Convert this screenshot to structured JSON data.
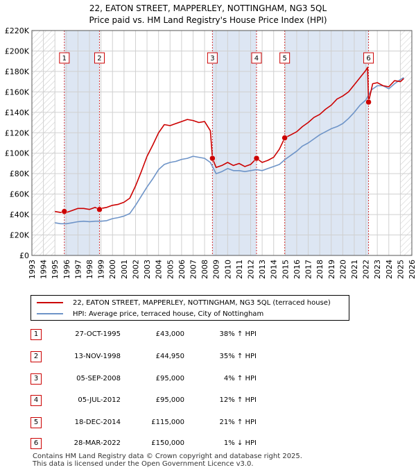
{
  "title_line1": "22, EATON STREET, MAPPERLEY, NOTTINGHAM, NG3 5QL",
  "title_line2": "Price paid vs. HM Land Registry's House Price Index (HPI)",
  "colors": {
    "property": "#cc0000",
    "hpi": "#6e94c8",
    "shade": "#dde6f3",
    "marker": "#cc0000"
  },
  "chart_data": {
    "type": "line",
    "title": "22, EATON STREET, MAPPERLEY, NOTTINGHAM, NG3 5QL — Price paid vs. HM Land Registry's House Price Index (HPI)",
    "xlabel": "",
    "ylabel": "",
    "xlim": [
      1993,
      2026
    ],
    "ylim": [
      0,
      220000
    ],
    "y_ticks": [
      0,
      20000,
      40000,
      60000,
      80000,
      100000,
      120000,
      140000,
      160000,
      180000,
      200000,
      220000
    ],
    "y_tick_labels": [
      "£0",
      "£20K",
      "£40K",
      "£60K",
      "£80K",
      "£100K",
      "£120K",
      "£140K",
      "£160K",
      "£180K",
      "£200K",
      "£220K"
    ],
    "x_ticks": [
      1993,
      1994,
      1995,
      1996,
      1997,
      1998,
      1999,
      2000,
      2001,
      2002,
      2003,
      2004,
      2005,
      2006,
      2007,
      2008,
      2009,
      2010,
      2011,
      2012,
      2013,
      2014,
      2015,
      2016,
      2017,
      2018,
      2019,
      2020,
      2021,
      2022,
      2023,
      2024,
      2025,
      2026
    ],
    "x_tick_labels": [
      "1993",
      "1994",
      "1995",
      "1996",
      "1997",
      "1998",
      "1999",
      "2000",
      "2001",
      "2002",
      "2003",
      "2004",
      "2005",
      "2006",
      "2007",
      "2008",
      "2009",
      "2010",
      "2011",
      "2012",
      "2013",
      "2014",
      "2015",
      "2016",
      "2017",
      "2018",
      "2019",
      "2020",
      "2021",
      "2022",
      "2023",
      "2024",
      "2025",
      "2026"
    ],
    "grid": true,
    "hatched_ranges": [
      [
        1993,
        1995.0
      ],
      [
        2025.0,
        2026
      ]
    ],
    "shaded_ranges": [
      [
        1995.82,
        1998.87
      ],
      [
        2008.68,
        2012.51
      ],
      [
        2014.96,
        2022.24
      ]
    ],
    "series": [
      {
        "name": "22, EATON STREET, MAPPERLEY, NOTTINGHAM, NG3 5QL (terraced house)",
        "x": [
          1995.0,
          1995.5,
          1995.82,
          1996.0,
          1996.5,
          1997.0,
          1997.5,
          1998.0,
          1998.5,
          1998.87,
          1999.0,
          1999.5,
          2000.0,
          2000.5,
          2001.0,
          2001.5,
          2002.0,
          2002.5,
          2003.0,
          2003.5,
          2004.0,
          2004.5,
          2005.0,
          2005.5,
          2006.0,
          2006.5,
          2007.0,
          2007.5,
          2008.0,
          2008.5,
          2008.68,
          2009.0,
          2009.5,
          2010.0,
          2010.5,
          2011.0,
          2011.5,
          2012.0,
          2012.51,
          2013.0,
          2013.5,
          2014.0,
          2014.5,
          2014.96,
          2015.5,
          2016.0,
          2016.5,
          2017.0,
          2017.5,
          2018.0,
          2018.5,
          2019.0,
          2019.5,
          2020.0,
          2020.5,
          2021.0,
          2021.5,
          2022.0,
          2022.15,
          2022.24,
          2022.6,
          2023.0,
          2023.5,
          2024.0,
          2024.5,
          2025.0,
          2025.3
        ],
        "values": [
          43000,
          42000,
          43000,
          42000,
          44000,
          46000,
          46000,
          45000,
          47000,
          44950,
          46000,
          47000,
          49000,
          50000,
          52000,
          56000,
          68000,
          82000,
          97000,
          108000,
          120000,
          128000,
          127000,
          129000,
          131000,
          133000,
          132000,
          130000,
          131000,
          122000,
          95000,
          86000,
          88000,
          91000,
          88000,
          90000,
          87000,
          89000,
          95000,
          91000,
          93000,
          96000,
          104000,
          115000,
          118000,
          121000,
          126000,
          130000,
          135000,
          138000,
          143000,
          147000,
          153000,
          156000,
          160000,
          167000,
          174000,
          181000,
          184000,
          150000,
          168000,
          169000,
          166000,
          165000,
          171000,
          170000,
          173000
        ]
      },
      {
        "name": "HPI: Average price, terraced house, City of Nottingham",
        "x": [
          1995.0,
          1995.5,
          1996.0,
          1996.5,
          1997.0,
          1997.5,
          1998.0,
          1998.5,
          1999.0,
          1999.5,
          2000.0,
          2000.5,
          2001.0,
          2001.5,
          2002.0,
          2002.5,
          2003.0,
          2003.5,
          2004.0,
          2004.5,
          2005.0,
          2005.5,
          2006.0,
          2006.5,
          2007.0,
          2007.5,
          2008.0,
          2008.5,
          2009.0,
          2009.5,
          2010.0,
          2010.5,
          2011.0,
          2011.5,
          2012.0,
          2012.5,
          2013.0,
          2013.5,
          2014.0,
          2014.5,
          2015.0,
          2015.5,
          2016.0,
          2016.5,
          2017.0,
          2017.5,
          2018.0,
          2018.5,
          2019.0,
          2019.5,
          2020.0,
          2020.5,
          2021.0,
          2021.5,
          2022.0,
          2022.5,
          2023.0,
          2023.5,
          2024.0,
          2024.5,
          2025.0,
          2025.3
        ],
        "values": [
          32000,
          31000,
          31000,
          32000,
          33000,
          33500,
          33000,
          33500,
          33500,
          34000,
          36000,
          37000,
          38500,
          41000,
          49000,
          58000,
          67000,
          75000,
          84000,
          89000,
          91000,
          92000,
          94000,
          95000,
          97000,
          96000,
          95000,
          91000,
          80000,
          82000,
          85000,
          83000,
          83000,
          82000,
          83000,
          84000,
          83000,
          85000,
          87000,
          89000,
          94000,
          98000,
          102000,
          107000,
          110000,
          114000,
          118000,
          121000,
          124000,
          126000,
          129000,
          134000,
          140000,
          147000,
          152000,
          162000,
          166000,
          166000,
          163000,
          168000,
          172000,
          174000
        ]
      }
    ],
    "markers": [
      {
        "label": "1",
        "x": 1995.82,
        "value": 43000
      },
      {
        "label": "2",
        "x": 1998.87,
        "value": 44950
      },
      {
        "label": "3",
        "x": 2008.68,
        "value": 95000
      },
      {
        "label": "4",
        "x": 2012.51,
        "value": 95000
      },
      {
        "label": "5",
        "x": 2014.96,
        "value": 115000
      },
      {
        "label": "6",
        "x": 2022.24,
        "value": 150000
      }
    ]
  },
  "legend": {
    "property_label": "22, EATON STREET, MAPPERLEY, NOTTINGHAM, NG3 5QL (terraced house)",
    "hpi_label": "HPI: Average price, terraced house, City of Nottingham"
  },
  "transactions": [
    {
      "num": "1",
      "date": "27-OCT-1995",
      "price": "£43,000",
      "hpi": "38% ↑ HPI"
    },
    {
      "num": "2",
      "date": "13-NOV-1998",
      "price": "£44,950",
      "hpi": "35% ↑ HPI"
    },
    {
      "num": "3",
      "date": "05-SEP-2008",
      "price": "£95,000",
      "hpi": "4% ↑ HPI"
    },
    {
      "num": "4",
      "date": "05-JUL-2012",
      "price": "£95,000",
      "hpi": "12% ↑ HPI"
    },
    {
      "num": "5",
      "date": "18-DEC-2014",
      "price": "£115,000",
      "hpi": "21% ↑ HPI"
    },
    {
      "num": "6",
      "date": "28-MAR-2022",
      "price": "£150,000",
      "hpi": "1% ↓ HPI"
    }
  ],
  "footer": {
    "line1": "Contains HM Land Registry data © Crown copyright and database right 2025.",
    "line2": "This data is licensed under the Open Government Licence v3.0."
  }
}
